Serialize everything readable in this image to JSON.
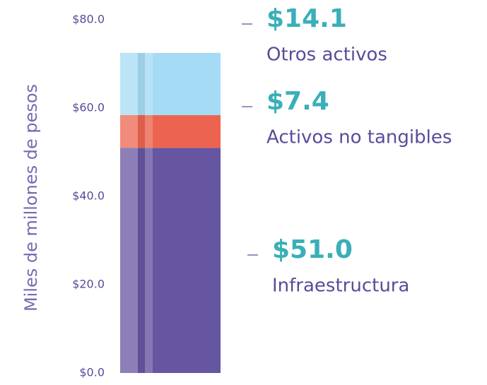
{
  "chart_data": {
    "type": "stacked_bar",
    "ylabel": "Miles de millones de pesos",
    "categories": [
      null
    ],
    "series": [
      {
        "name": "Infraestructura",
        "color": "#6655a0",
        "values": [
          51.0
        ],
        "value_labels": [
          "$51.0"
        ]
      },
      {
        "name": "Activos no tangibles",
        "color": "#ec6450",
        "values": [
          7.4
        ],
        "value_labels": [
          "$7.4"
        ]
      },
      {
        "name": "Otros activos",
        "color": "#a6dbf5",
        "values": [
          14.1
        ],
        "value_labels": [
          "$14.1"
        ]
      }
    ],
    "ylim": [
      0,
      80
    ],
    "yticks": [
      {
        "value": 0,
        "label": "$0.0"
      },
      {
        "value": 20,
        "label": "$20.0"
      },
      {
        "value": 40,
        "label": "$40.0"
      },
      {
        "value": 60,
        "label": "$60.0"
      },
      {
        "value": 80,
        "label": "$80.0"
      }
    ],
    "grid": false
  }
}
